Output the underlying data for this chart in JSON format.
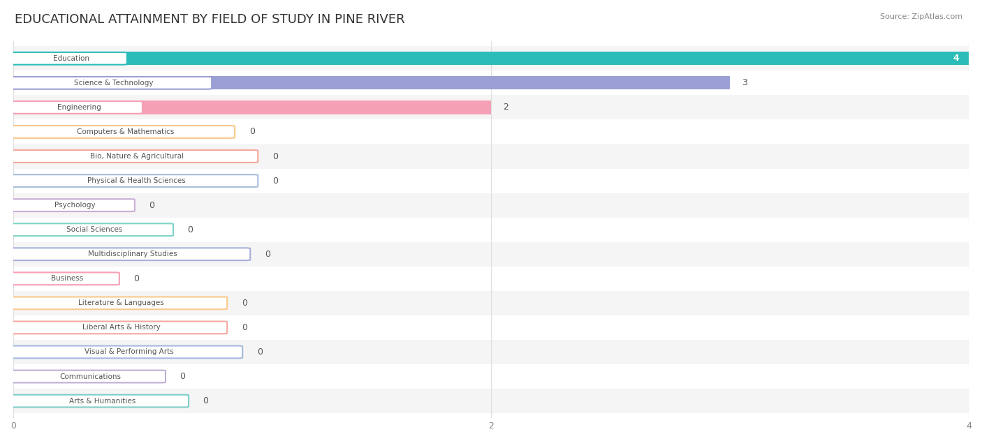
{
  "title": "EDUCATIONAL ATTAINMENT BY FIELD OF STUDY IN PINE RIVER",
  "source_text": "Source: ZipAtlas.com",
  "categories": [
    "Education",
    "Science & Technology",
    "Engineering",
    "Computers & Mathematics",
    "Bio, Nature & Agricultural",
    "Physical & Health Sciences",
    "Psychology",
    "Social Sciences",
    "Multidisciplinary Studies",
    "Business",
    "Literature & Languages",
    "Liberal Arts & History",
    "Visual & Performing Arts",
    "Communications",
    "Arts & Humanities"
  ],
  "values": [
    4,
    3,
    2,
    0,
    0,
    0,
    0,
    0,
    0,
    0,
    0,
    0,
    0,
    0,
    0
  ],
  "bar_colors": [
    "#2bbcb8",
    "#9b9fd4",
    "#f5a0b5",
    "#f9c98a",
    "#f5a89a",
    "#a8bfdd",
    "#c9aed4",
    "#7fd4c8",
    "#a8b0d8",
    "#f5a0b5",
    "#f9c98a",
    "#f5a8a0",
    "#a8b8e0",
    "#c0aed0",
    "#7ecec8"
  ],
  "label_colors": [
    "#2bbcb8",
    "#9b9fd4",
    "#f5a0b5",
    "#f9c98a",
    "#f5a89a",
    "#a8bfdd",
    "#c9aed4",
    "#7fd4c8",
    "#a8b0d8",
    "#f5a0b5",
    "#f9c98a",
    "#f5a8a0",
    "#a8b8e0",
    "#c0aed0",
    "#7ecec8"
  ],
  "xlim": [
    0,
    4
  ],
  "xticks": [
    0,
    2,
    4
  ],
  "background_color": "#ffffff",
  "row_bg_colors": [
    "#f5f5f5",
    "#ffffff"
  ],
  "title_fontsize": 13,
  "bar_height": 0.55
}
